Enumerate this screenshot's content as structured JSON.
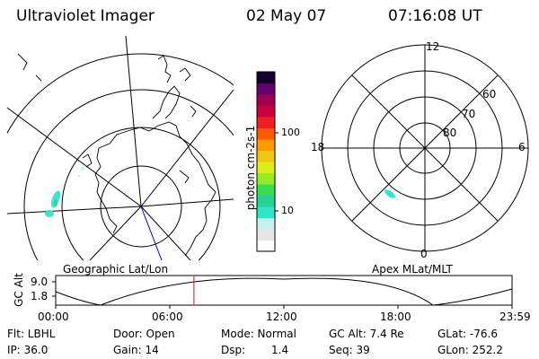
{
  "header": {
    "title": "Ultraviolet Imager",
    "date": "02 May 07",
    "time": "07:16:08 UT"
  },
  "left_panel": {
    "caption": "Geographic Lat/Lon"
  },
  "colorbar": {
    "unit_label": "photon cm-2s-1",
    "ticks": [
      "100",
      "10"
    ],
    "colors": [
      "#fefefe",
      "#e6e6e6",
      "#c8f0f0",
      "#30e6c8",
      "#28d296",
      "#3cdc50",
      "#96ec28",
      "#d8f018",
      "#f0c812",
      "#ff9a00",
      "#ff5a00",
      "#f01e1e",
      "#c8003c",
      "#a00050",
      "#64006e",
      "#14002e"
    ]
  },
  "right_panel": {
    "caption": "Apex MLat/MLT",
    "mlt_labels": [
      "12",
      "18",
      "6",
      "0"
    ],
    "lat_labels": [
      "60",
      "70",
      "80"
    ]
  },
  "timeline": {
    "ylabel": "GC Alt",
    "yticks": [
      "9.0",
      "1.8"
    ],
    "xticks": [
      "00:00",
      "06:00",
      "12:00",
      "18:00",
      "23:59"
    ],
    "current_time_fraction": 0.3029,
    "line_color": "#ff0000"
  },
  "status": {
    "row1": {
      "flt": "Flt: LBHL",
      "door": "Door: Open",
      "mode": "Mode: Normal",
      "gc_alt": "GC Alt: 7.4 Re",
      "glat": "GLat: -76.6"
    },
    "row2": {
      "ip": "IP: 36.0",
      "gain": "Gain: 14",
      "dsp_label": "Dsp:",
      "dsp_value": "1.4",
      "seq": "Seq: 39",
      "glon": "GLon: 252.2"
    }
  }
}
